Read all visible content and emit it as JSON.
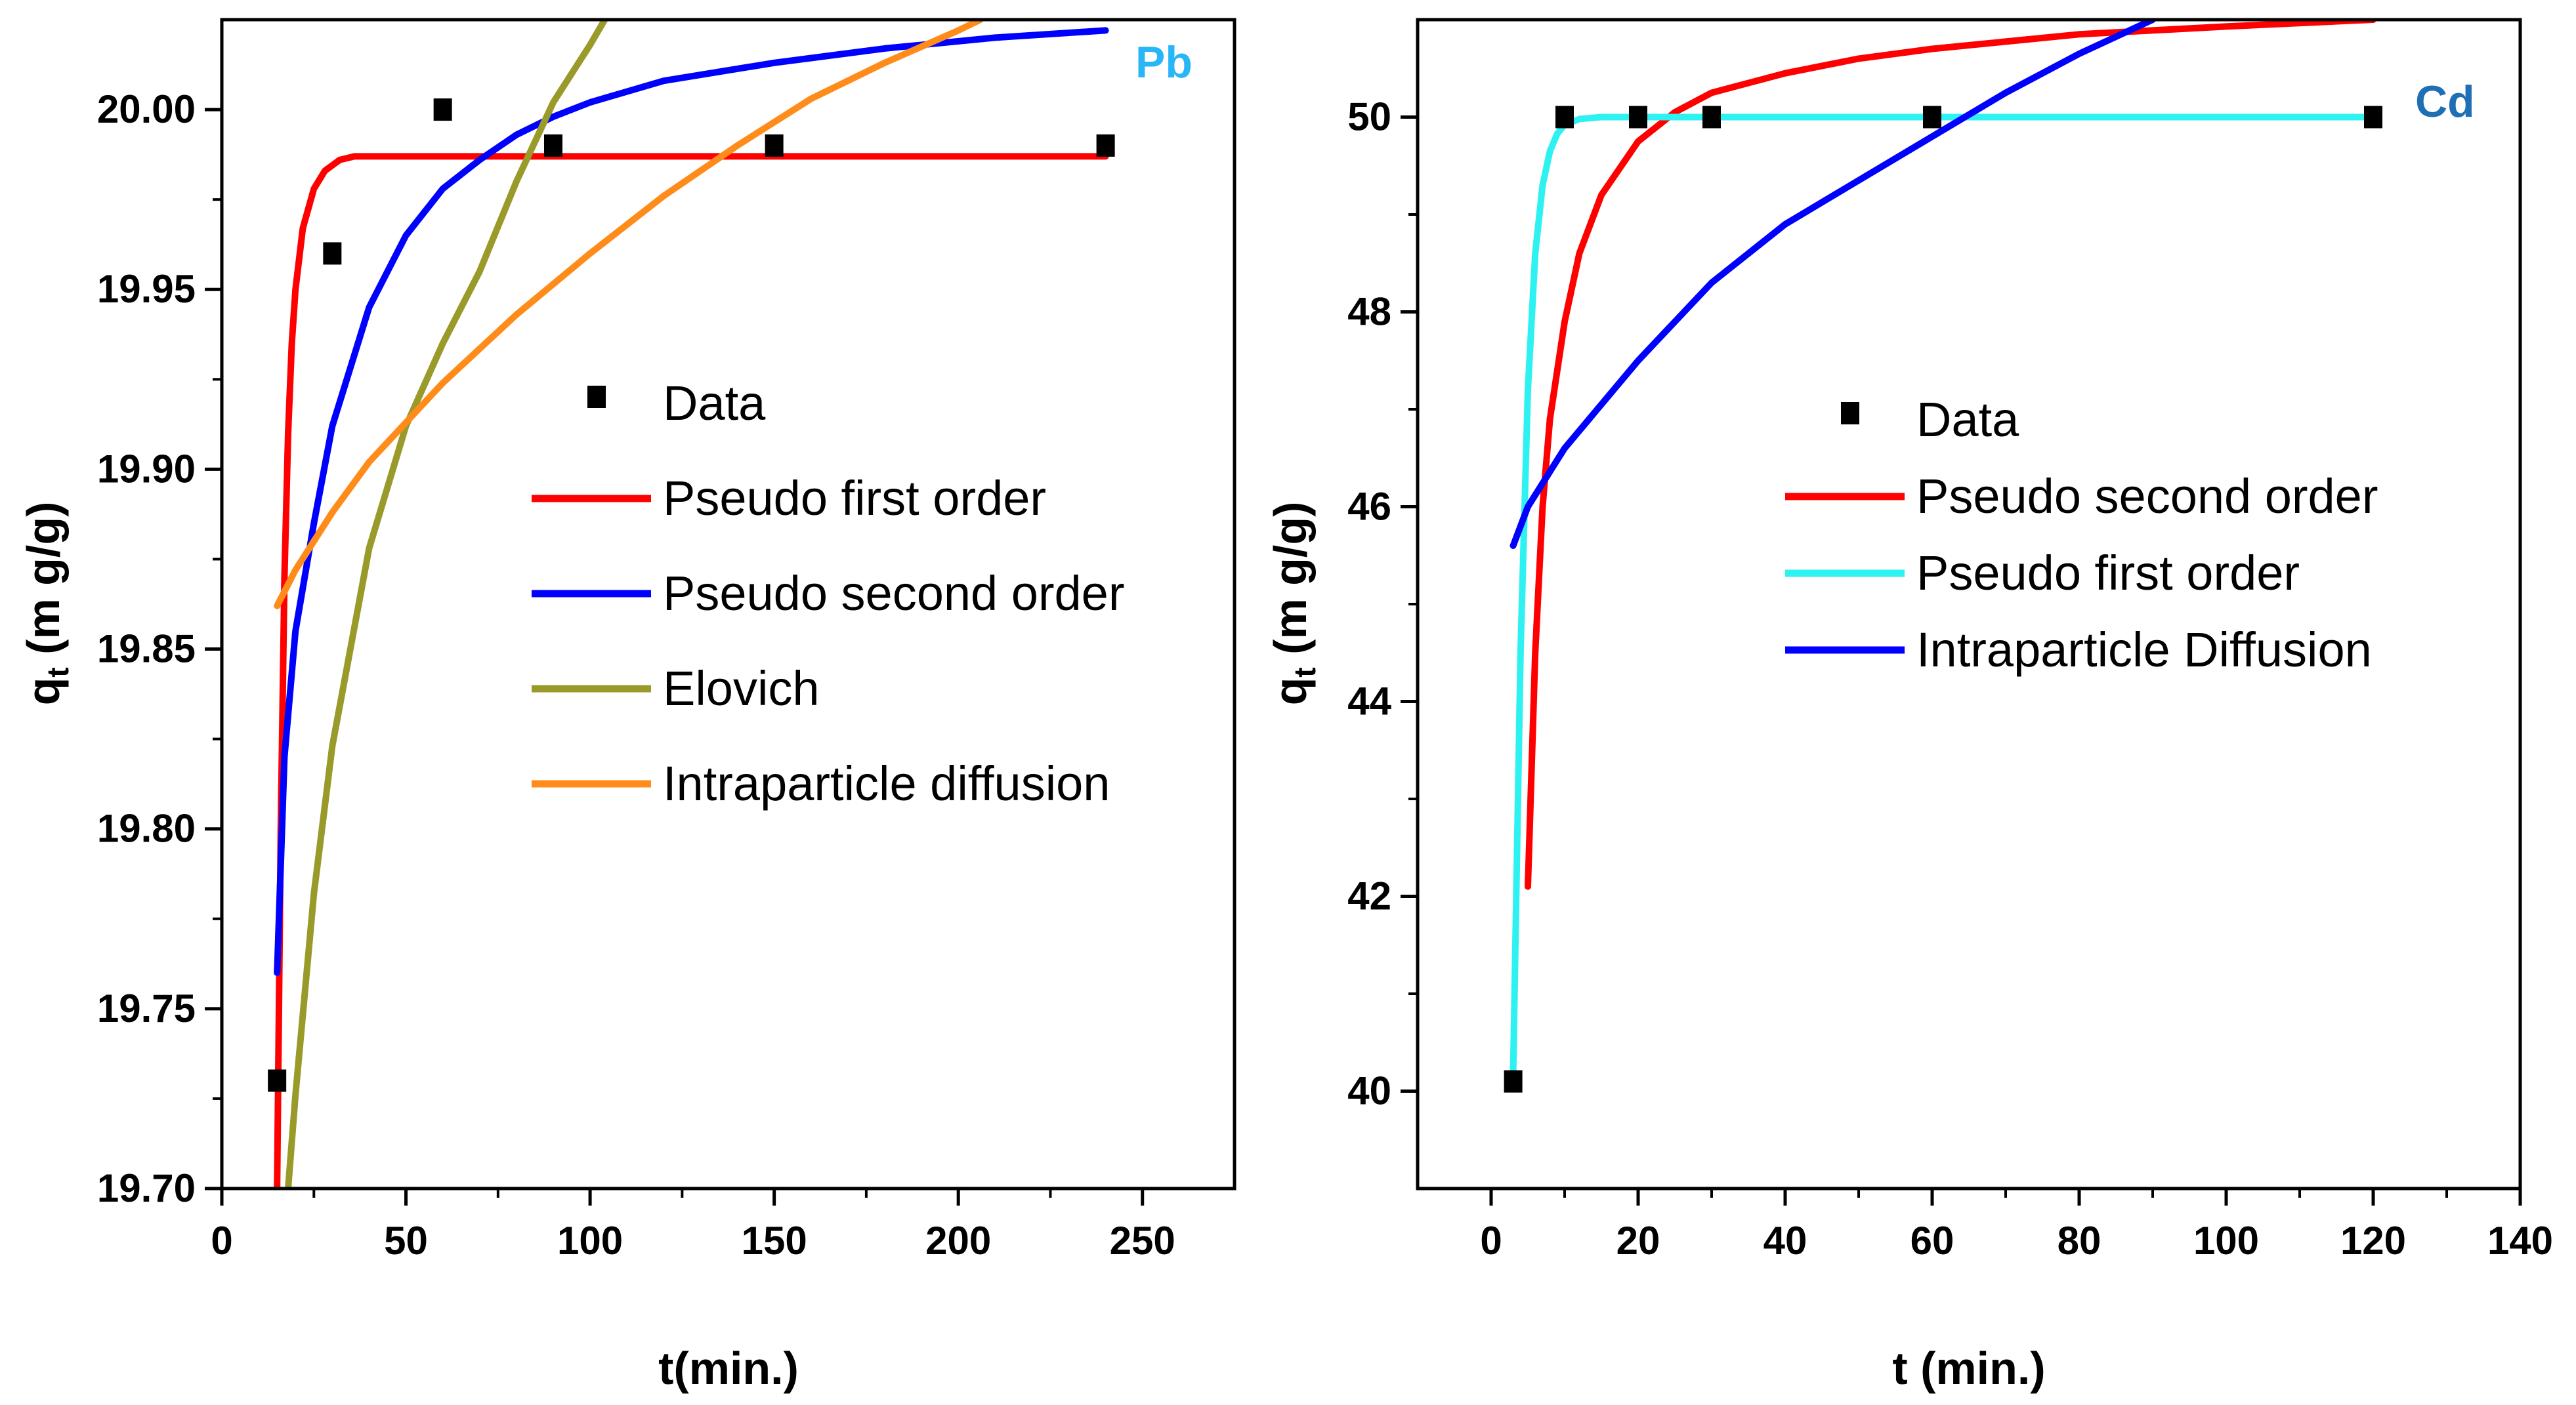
{
  "chart_data": [
    {
      "type": "line",
      "panel": "Pb",
      "label": "Pb",
      "label_color": "#29b6f6",
      "xlabel": "t(min.)",
      "ylabel_main": "q",
      "ylabel_sub": "t",
      "ylabel_rest": "(m g/g)",
      "xlim": [
        0,
        275
      ],
      "ylim": [
        19.7,
        20.025
      ],
      "xticks": [
        0,
        50,
        100,
        150,
        200,
        250
      ],
      "yticks": [
        19.7,
        19.75,
        19.8,
        19.85,
        19.9,
        19.95,
        20.0
      ],
      "ytick_decimals": 2,
      "data_points": {
        "name": "Data",
        "x": [
          15,
          30,
          60,
          90,
          150,
          240
        ],
        "y": [
          19.73,
          19.96,
          20.0,
          19.99,
          19.99,
          19.99
        ]
      },
      "legend": [
        {
          "name": "Data",
          "kind": "marker"
        },
        {
          "name": "Pseudo first order",
          "kind": "line",
          "color": "#ff0000"
        },
        {
          "name": "Pseudo second order",
          "kind": "line",
          "color": "#0000ff"
        },
        {
          "name": "Elovich",
          "kind": "line",
          "color": "#9a9a2a"
        },
        {
          "name": "Intraparticle diffusion",
          "kind": "line",
          "color": "#ff8c1a"
        }
      ],
      "series": [
        {
          "name": "Pseudo first order",
          "color": "#ff0000",
          "x": [
            15,
            16,
            17,
            18,
            19,
            20,
            22,
            25,
            28,
            32,
            36,
            40,
            60,
            100,
            150,
            200,
            240
          ],
          "y": [
            19.7,
            19.8,
            19.87,
            19.91,
            19.935,
            19.95,
            19.967,
            19.978,
            19.983,
            19.986,
            19.987,
            19.987,
            19.987,
            19.987,
            19.987,
            19.987,
            19.987
          ]
        },
        {
          "name": "Pseudo second order",
          "color": "#0000ff",
          "x": [
            15,
            17,
            20,
            25,
            30,
            40,
            50,
            60,
            70,
            80,
            90,
            100,
            120,
            150,
            180,
            210,
            240
          ],
          "y": [
            19.76,
            19.82,
            19.855,
            19.885,
            19.912,
            19.945,
            19.965,
            19.978,
            19.986,
            19.993,
            19.998,
            20.002,
            20.008,
            20.013,
            20.017,
            20.02,
            20.022
          ]
        },
        {
          "name": "Elovich",
          "color": "#9a9a2a",
          "x": [
            18,
            20,
            25,
            30,
            40,
            50,
            60,
            70,
            80,
            90,
            100,
            104
          ],
          "y": [
            19.7,
            19.726,
            19.782,
            19.823,
            19.878,
            19.912,
            19.935,
            19.955,
            19.98,
            20.002,
            20.018,
            20.025
          ]
        },
        {
          "name": "Intraparticle diffusion",
          "color": "#ff8c1a",
          "x": [
            15,
            20,
            30,
            40,
            60,
            80,
            100,
            120,
            140,
            160,
            180,
            200,
            206
          ],
          "y": [
            19.862,
            19.872,
            19.888,
            19.902,
            19.924,
            19.943,
            19.96,
            19.976,
            19.99,
            20.003,
            20.013,
            20.022,
            20.025
          ]
        }
      ]
    },
    {
      "type": "line",
      "panel": "Cd",
      "label": "Cd",
      "label_color": "#1f6fb4",
      "xlabel": "t (min.)",
      "ylabel_main": "q",
      "ylabel_sub": "t",
      "ylabel_rest": "(m g/g)",
      "xlim": [
        -10,
        140
      ],
      "ylim": [
        39,
        51
      ],
      "xticks": [
        0,
        20,
        40,
        60,
        80,
        100,
        120,
        140
      ],
      "yticks": [
        40,
        42,
        44,
        46,
        48,
        50
      ],
      "ytick_decimals": 0,
      "data_points": {
        "name": "Data",
        "x": [
          3,
          10,
          20,
          30,
          60,
          120
        ],
        "y": [
          40.1,
          50,
          50,
          50,
          50,
          50
        ]
      },
      "legend": [
        {
          "name": "Data",
          "kind": "marker"
        },
        {
          "name": "Pseudo second order",
          "kind": "line",
          "color": "#ff0000"
        },
        {
          "name": "Pseudo first order",
          "kind": "line",
          "color": "#2ef2f2"
        },
        {
          "name": "Intraparticle Diffusion",
          "kind": "line",
          "color": "#0000ff"
        }
      ],
      "series": [
        {
          "name": "Pseudo second order",
          "color": "#ff0000",
          "x": [
            5,
            6,
            7,
            8,
            10,
            12,
            15,
            20,
            25,
            30,
            40,
            50,
            60,
            80,
            100,
            120
          ],
          "y": [
            42.1,
            44.5,
            46.0,
            46.9,
            47.9,
            48.6,
            49.2,
            49.75,
            50.05,
            50.25,
            50.45,
            50.6,
            50.7,
            50.85,
            50.93,
            51.0
          ]
        },
        {
          "name": "Pseudo first order",
          "color": "#2ef2f2",
          "x": [
            3,
            4,
            5,
            6,
            7,
            8,
            9,
            10,
            12,
            15,
            20,
            40,
            60,
            120
          ],
          "y": [
            40.2,
            44.5,
            47.2,
            48.6,
            49.3,
            49.65,
            49.83,
            49.92,
            49.98,
            50.0,
            50.0,
            50.0,
            50.0,
            50.0
          ]
        },
        {
          "name": "Intraparticle Diffusion",
          "color": "#0000ff",
          "x": [
            3,
            5,
            10,
            15,
            20,
            30,
            40,
            50,
            60,
            70,
            80,
            90
          ],
          "y": [
            45.6,
            46.0,
            46.6,
            47.05,
            47.5,
            48.3,
            48.9,
            49.35,
            49.8,
            50.25,
            50.65,
            51.0
          ]
        }
      ]
    }
  ]
}
